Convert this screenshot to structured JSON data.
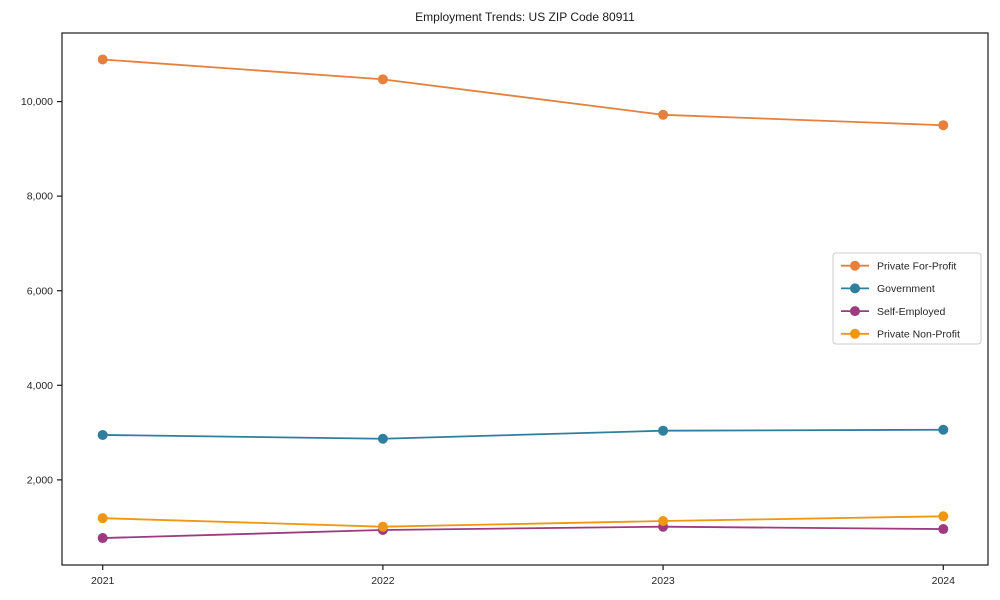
{
  "page": {
    "title": "Employment Trends: US ZIP Code 80911"
  },
  "chart_data": {
    "type": "line",
    "title": "Employment Trends: US ZIP Code 80911",
    "x": [
      "2021",
      "2022",
      "2023",
      "2024"
    ],
    "series": [
      {
        "name": "Private For-Profit",
        "color": "#e6803c",
        "values": [
          10890,
          10470,
          9720,
          9500
        ]
      },
      {
        "name": "Government",
        "color": "#2f7e9d",
        "values": [
          2950,
          2870,
          3040,
          3060
        ]
      },
      {
        "name": "Self-Employed",
        "color": "#9d3a80",
        "values": [
          770,
          940,
          1010,
          960
        ]
      },
      {
        "name": "Private Non-Profit",
        "color": "#ef9712",
        "values": [
          1190,
          1010,
          1130,
          1230
        ]
      }
    ],
    "yticks": {
      "values": [
        2000,
        4000,
        6000,
        8000,
        10000
      ],
      "labels": [
        "2,000",
        "4,000",
        "6,000",
        "8,000",
        "10,000"
      ]
    },
    "xtick_labels": [
      "2021",
      "2022",
      "2023",
      "2024"
    ],
    "ylim": [
      200,
      11450
    ],
    "grid": false,
    "frame": true,
    "legend_position": "center right",
    "axis_color": "#1a1a1a",
    "background": "#ffffff"
  }
}
